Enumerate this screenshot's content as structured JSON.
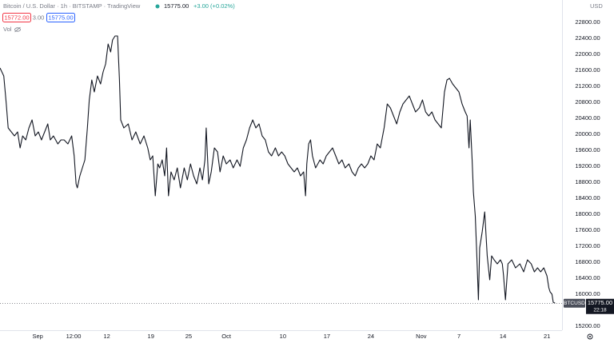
{
  "chart_data": {
    "type": "line",
    "title": "Bitcoin / U.S. Dollar · 1h · BITSTAMP · TradingView",
    "header_price": "15775.00",
    "header_change": "+3.00 (+0.02%)",
    "bid": "15772.00",
    "spread": "3.00",
    "ask": "15775.00",
    "volume_label": "Vol",
    "y_axis_label": "USD",
    "last_price_label": "15775.00",
    "countdown": "22:18",
    "grid": false,
    "xlim": [
      -6,
      83.4
    ],
    "ylim": [
      15100,
      23360
    ],
    "xticks": [
      {
        "value": 0,
        "label": "Sep"
      },
      {
        "value": 5.7,
        "label": "12:00"
      },
      {
        "value": 11,
        "label": "12"
      },
      {
        "value": 18,
        "label": "19"
      },
      {
        "value": 24,
        "label": "25"
      },
      {
        "value": 30,
        "label": "Oct"
      },
      {
        "value": 39,
        "label": "10"
      },
      {
        "value": 46,
        "label": "17"
      },
      {
        "value": 53,
        "label": "24"
      },
      {
        "value": 61,
        "label": "Nov"
      },
      {
        "value": 67,
        "label": "7"
      },
      {
        "value": 74,
        "label": "14"
      },
      {
        "value": 81,
        "label": "21"
      }
    ],
    "yticks": [
      {
        "value": 15200,
        "label": "15200.00"
      },
      {
        "value": 16000,
        "label": "16000.00"
      },
      {
        "value": 16400,
        "label": "16400.00"
      },
      {
        "value": 16800,
        "label": "16800.00"
      },
      {
        "value": 17200,
        "label": "17200.00"
      },
      {
        "value": 17600,
        "label": "17600.00"
      },
      {
        "value": 18000,
        "label": "18000.00"
      },
      {
        "value": 18400,
        "label": "18400.00"
      },
      {
        "value": 18800,
        "label": "18800.00"
      },
      {
        "value": 19200,
        "label": "19200.00"
      },
      {
        "value": 19600,
        "label": "19600.00"
      },
      {
        "value": 20000,
        "label": "20000.00"
      },
      {
        "value": 20400,
        "label": "20400.00"
      },
      {
        "value": 20800,
        "label": "20800.00"
      },
      {
        "value": 21200,
        "label": "21200.00"
      },
      {
        "value": 21600,
        "label": "21600.00"
      },
      {
        "value": 22000,
        "label": "22000.00"
      },
      {
        "value": 22400,
        "label": "22400.00"
      },
      {
        "value": 22800,
        "label": "22800.00"
      }
    ],
    "x": [
      -6.0,
      -5.4,
      -5.0,
      -4.7,
      -4.2,
      -3.7,
      -3.2,
      -2.8,
      -2.4,
      -1.9,
      -1.4,
      -0.9,
      -0.4,
      0.1,
      0.6,
      1.1,
      1.6,
      2.0,
      2.5,
      3.2,
      3.7,
      4.2,
      4.8,
      5.4,
      5.8,
      6.1,
      6.3,
      6.7,
      7.1,
      7.5,
      7.9,
      8.2,
      8.6,
      9.0,
      9.5,
      10.0,
      10.4,
      10.8,
      11.2,
      11.6,
      11.9,
      12.3,
      12.7,
      13.0,
      13.2,
      13.7,
      14.4,
      15.0,
      15.6,
      16.3,
      16.9,
      17.5,
      17.9,
      18.3,
      18.7,
      19.1,
      19.4,
      19.8,
      20.2,
      20.5,
      20.8,
      21.2,
      21.7,
      22.2,
      22.7,
      23.3,
      23.8,
      24.3,
      24.8,
      25.3,
      25.8,
      26.2,
      26.6,
      26.8,
      27.2,
      27.6,
      28.1,
      28.6,
      29.0,
      29.5,
      30.0,
      30.6,
      31.1,
      31.7,
      32.2,
      32.7,
      33.2,
      33.7,
      34.2,
      34.7,
      35.2,
      35.7,
      36.2,
      36.7,
      37.2,
      37.8,
      38.3,
      38.8,
      39.3,
      39.8,
      40.3,
      40.8,
      41.3,
      41.8,
      42.3,
      42.6,
      42.8,
      43.1,
      43.4,
      43.7,
      44.2,
      44.9,
      45.4,
      45.9,
      46.4,
      46.9,
      47.4,
      47.9,
      48.4,
      48.9,
      49.5,
      50.0,
      50.5,
      51.0,
      51.5,
      52.0,
      52.5,
      53.0,
      53.5,
      54.0,
      54.5,
      55.1,
      55.6,
      56.1,
      56.6,
      57.1,
      57.6,
      58.1,
      58.6,
      59.1,
      59.6,
      60.1,
      60.7,
      61.2,
      61.7,
      62.2,
      62.7,
      63.2,
      63.7,
      64.2,
      64.7,
      65.1,
      65.5,
      66.0,
      66.5,
      67.0,
      67.5,
      68.0,
      68.3,
      68.6,
      68.8,
      69.1,
      69.3,
      69.6,
      69.8,
      70.1,
      70.3,
      70.7,
      71.1,
      71.5,
      71.9,
      72.2,
      72.6,
      73.1,
      73.6,
      73.9,
      74.1,
      74.4,
      74.8,
      75.4,
      76.0,
      76.7,
      77.3,
      77.9,
      78.5,
      79.0,
      79.5,
      80.0,
      80.5,
      81.0,
      81.3,
      81.5,
      81.8,
      82.0,
      82.3
    ],
    "series": [
      {
        "name": "BTCUSD",
        "color": "#131722",
        "values": [
          21660,
          21460,
          20760,
          20160,
          20060,
          19960,
          20060,
          19660,
          19960,
          19860,
          20160,
          20360,
          19960,
          20060,
          19860,
          20060,
          20260,
          19860,
          19960,
          19760,
          19860,
          19860,
          19760,
          19960,
          19460,
          18760,
          18660,
          18960,
          19160,
          19360,
          20160,
          20860,
          21360,
          21060,
          21460,
          21260,
          21560,
          21760,
          22260,
          22060,
          22360,
          22460,
          22460,
          21360,
          20360,
          20160,
          20260,
          19860,
          20060,
          19760,
          19960,
          19660,
          19360,
          19460,
          18460,
          19260,
          19160,
          19360,
          18960,
          19660,
          18460,
          19060,
          18860,
          19160,
          18660,
          19160,
          18860,
          19260,
          18960,
          18760,
          19160,
          18860,
          19360,
          20160,
          18760,
          19060,
          19660,
          19560,
          19060,
          19460,
          19260,
          19360,
          19160,
          19360,
          19200,
          19660,
          19860,
          20160,
          20360,
          20160,
          20260,
          19960,
          19860,
          19560,
          19460,
          19660,
          19460,
          19560,
          19460,
          19260,
          19160,
          19060,
          19160,
          18960,
          19060,
          18460,
          19260,
          19760,
          19860,
          19460,
          19160,
          19360,
          19260,
          19460,
          19560,
          19660,
          19460,
          19260,
          19360,
          19160,
          19260,
          19060,
          18960,
          19160,
          19260,
          19160,
          19260,
          19460,
          19360,
          19760,
          19660,
          20160,
          20760,
          20660,
          20460,
          20260,
          20560,
          20760,
          20860,
          20960,
          20760,
          20560,
          20660,
          20860,
          20560,
          20460,
          20560,
          20360,
          20260,
          20160,
          21060,
          21360,
          21400,
          21260,
          21160,
          21060,
          20760,
          20560,
          20460,
          19660,
          20360,
          19360,
          18560,
          17960,
          17160,
          15860,
          17160,
          17560,
          18060,
          16960,
          16360,
          16960,
          16860,
          16760,
          16860,
          16760,
          16460,
          15860,
          16760,
          16860,
          16660,
          16760,
          16560,
          16860,
          16760,
          16560,
          16660,
          16560,
          16660,
          16460,
          16160,
          16060,
          16000,
          15800,
          15775
        ]
      }
    ]
  }
}
